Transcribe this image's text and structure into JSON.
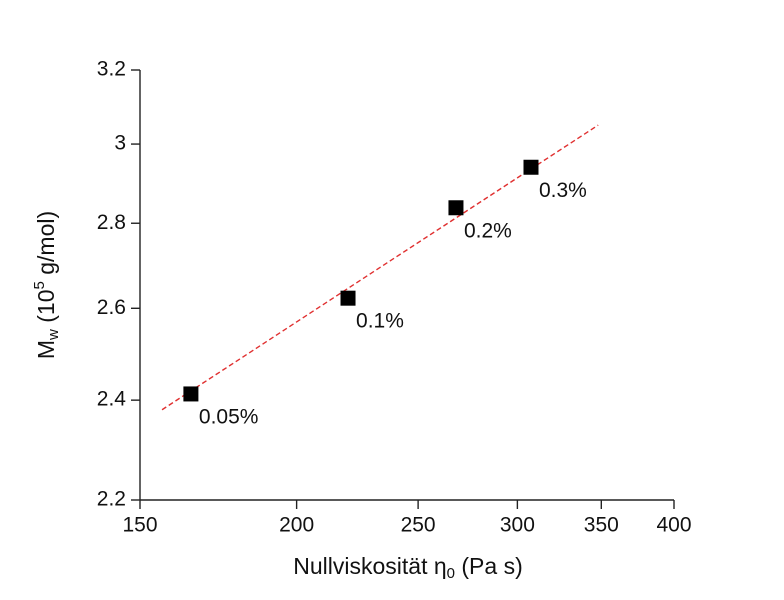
{
  "chart_data": {
    "type": "scatter",
    "xlabel": [
      "Nullviskosität η",
      "0",
      " (Pa s)"
    ],
    "ylabel": [
      "M",
      "w",
      " (10",
      "5",
      " g/mol)"
    ],
    "x": [
      164.7,
      219.8,
      268,
      307.6
    ],
    "values": [
      2.413,
      2.623,
      2.838,
      2.94
    ],
    "point_labels": [
      "0.05%",
      "0.1%",
      "0.2%",
      "0.3%"
    ],
    "color": "#000000",
    "fit": {
      "x": [
        156.2,
        348
      ],
      "y": [
        2.38,
        3.05
      ],
      "color": "#e03030"
    },
    "xlim": [
      150,
      400
    ],
    "xticks": [
      150,
      200,
      250,
      300,
      350,
      400
    ],
    "ylim": [
      2.2,
      3.2
    ],
    "yticks": [
      2.2,
      2.4,
      2.6,
      2.8,
      3,
      3.2
    ],
    "xscale": "log",
    "yscale": "log"
  }
}
